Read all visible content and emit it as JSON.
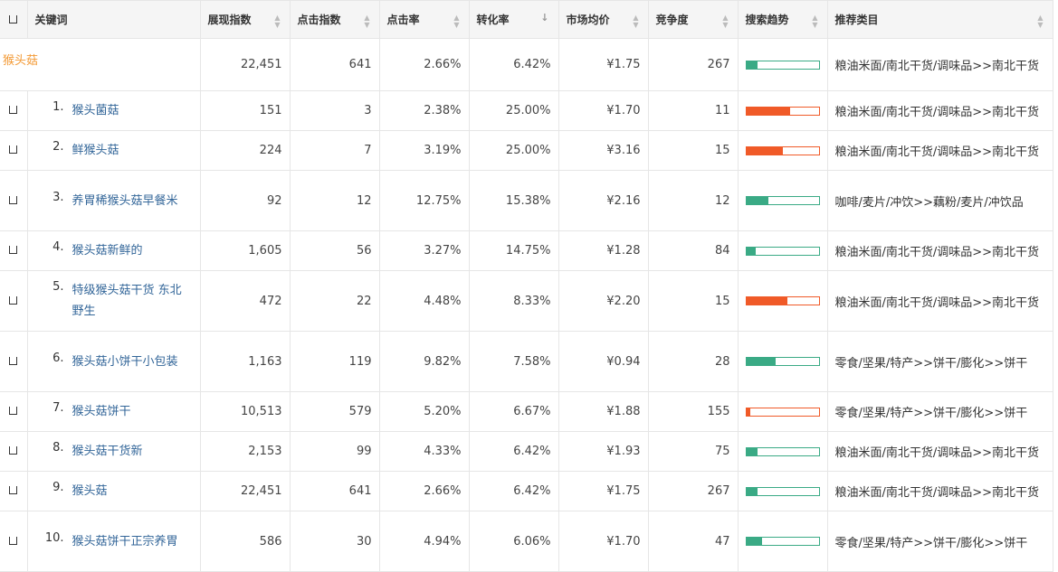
{
  "headers": {
    "keyword": "关键词",
    "impressions": "展现指数",
    "clicks": "点击指数",
    "ctr": "点击率",
    "cvr": "转化率",
    "price": "市场均价",
    "competition": "竞争度",
    "trend": "搜索趋势",
    "category": "推荐类目"
  },
  "colors": {
    "up": "#f05a28",
    "down": "#3aaa85"
  },
  "parent": {
    "keyword": "猴头菇",
    "impressions": "22,451",
    "clicks": "641",
    "ctr": "2.66%",
    "cvr": "6.42%",
    "price": "¥1.75",
    "competition": "267",
    "trend_level": 0.15,
    "trend_dir": "down",
    "category": "粮油米面/南北干货/调味品>>南北干货"
  },
  "rows": [
    {
      "index": "1.",
      "keyword": "猴头菌菇",
      "impressions": "151",
      "clicks": "3",
      "ctr": "2.38%",
      "cvr": "25.00%",
      "price": "¥1.70",
      "competition": "11",
      "trend_level": 0.6,
      "trend_dir": "up",
      "category": "粮油米面/南北干货/调味品>>南北干货"
    },
    {
      "index": "2.",
      "keyword": "鲜猴头菇",
      "impressions": "224",
      "clicks": "7",
      "ctr": "3.19%",
      "cvr": "25.00%",
      "price": "¥3.16",
      "competition": "15",
      "trend_level": 0.5,
      "trend_dir": "up",
      "category": "粮油米面/南北干货/调味品>>南北干货"
    },
    {
      "index": "3.",
      "keyword": "养胃稀猴头菇早餐米",
      "impressions": "92",
      "clicks": "12",
      "ctr": "12.75%",
      "cvr": "15.38%",
      "price": "¥2.16",
      "competition": "12",
      "trend_level": 0.3,
      "trend_dir": "down",
      "category": "咖啡/麦片/冲饮>>藕粉/麦片/冲饮品"
    },
    {
      "index": "4.",
      "keyword": "猴头菇新鲜的",
      "impressions": "1,605",
      "clicks": "56",
      "ctr": "3.27%",
      "cvr": "14.75%",
      "price": "¥1.28",
      "competition": "84",
      "trend_level": 0.13,
      "trend_dir": "down",
      "category": "粮油米面/南北干货/调味品>>南北干货"
    },
    {
      "index": "5.",
      "keyword": "特级猴头菇干货 东北野生",
      "impressions": "472",
      "clicks": "22",
      "ctr": "4.48%",
      "cvr": "8.33%",
      "price": "¥2.20",
      "competition": "15",
      "trend_level": 0.57,
      "trend_dir": "up",
      "category": "粮油米面/南北干货/调味品>>南北干货"
    },
    {
      "index": "6.",
      "keyword": "猴头菇小饼干小包装",
      "impressions": "1,163",
      "clicks": "119",
      "ctr": "9.82%",
      "cvr": "7.58%",
      "price": "¥0.94",
      "competition": "28",
      "trend_level": 0.4,
      "trend_dir": "down",
      "category": "零食/坚果/特产>>饼干/膨化>>饼干"
    },
    {
      "index": "7.",
      "keyword": "猴头菇饼干",
      "impressions": "10,513",
      "clicks": "579",
      "ctr": "5.20%",
      "cvr": "6.67%",
      "price": "¥1.88",
      "competition": "155",
      "trend_level": 0.05,
      "trend_dir": "up",
      "category": "零食/坚果/特产>>饼干/膨化>>饼干"
    },
    {
      "index": "8.",
      "keyword": "猴头菇干货新",
      "impressions": "2,153",
      "clicks": "99",
      "ctr": "4.33%",
      "cvr": "6.42%",
      "price": "¥1.93",
      "competition": "75",
      "trend_level": 0.15,
      "trend_dir": "down",
      "category": "粮油米面/南北干货/调味品>>南北干货"
    },
    {
      "index": "9.",
      "keyword": "猴头菇",
      "impressions": "22,451",
      "clicks": "641",
      "ctr": "2.66%",
      "cvr": "6.42%",
      "price": "¥1.75",
      "competition": "267",
      "trend_level": 0.15,
      "trend_dir": "down",
      "category": "粮油米面/南北干货/调味品>>南北干货"
    },
    {
      "index": "10.",
      "keyword": "猴头菇饼干正宗养胃",
      "impressions": "586",
      "clicks": "30",
      "ctr": "4.94%",
      "cvr": "6.06%",
      "price": "¥1.70",
      "competition": "47",
      "trend_level": 0.22,
      "trend_dir": "down",
      "category": "零食/坚果/特产>>饼干/膨化>>饼干"
    }
  ]
}
